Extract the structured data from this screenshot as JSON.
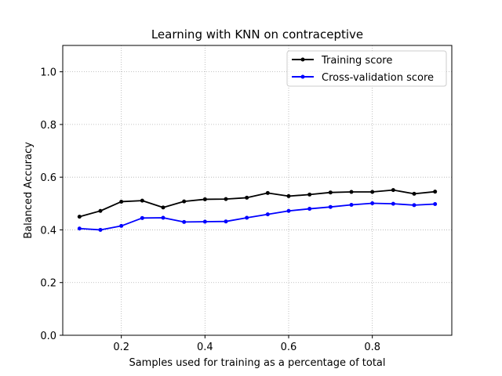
{
  "chart_data": {
    "type": "line",
    "title": "Learning with KNN on contraceptive",
    "xlabel": "Samples used for training as a percentage of total",
    "ylabel": "Balanced Accuracy",
    "xlim": [
      0.06,
      0.99
    ],
    "ylim": [
      0.0,
      1.1
    ],
    "xticks": [
      0.2,
      0.4,
      0.6,
      0.8
    ],
    "xtick_labels": [
      "0.2",
      "0.4",
      "0.6",
      "0.8"
    ],
    "yticks": [
      0.0,
      0.2,
      0.4,
      0.6,
      0.8,
      1.0
    ],
    "ytick_labels": [
      "0.0",
      "0.2",
      "0.4",
      "0.6",
      "0.8",
      "1.0"
    ],
    "grid": true,
    "legend_position": "upper right",
    "x": [
      0.1,
      0.15,
      0.2,
      0.25,
      0.3,
      0.35,
      0.4,
      0.45,
      0.5,
      0.55,
      0.6,
      0.65,
      0.7,
      0.75,
      0.8,
      0.85,
      0.9,
      0.95
    ],
    "series": [
      {
        "name": "Training score",
        "color": "#000000",
        "values": [
          0.45,
          0.472,
          0.507,
          0.511,
          0.485,
          0.508,
          0.516,
          0.517,
          0.522,
          0.54,
          0.528,
          0.534,
          0.542,
          0.544,
          0.544,
          0.551,
          0.537,
          0.545
        ]
      },
      {
        "name": "Cross-validation score",
        "color": "#0000ff",
        "values": [
          0.405,
          0.4,
          0.415,
          0.445,
          0.446,
          0.43,
          0.431,
          0.432,
          0.446,
          0.459,
          0.472,
          0.48,
          0.487,
          0.495,
          0.501,
          0.499,
          0.494,
          0.498
        ]
      }
    ]
  }
}
